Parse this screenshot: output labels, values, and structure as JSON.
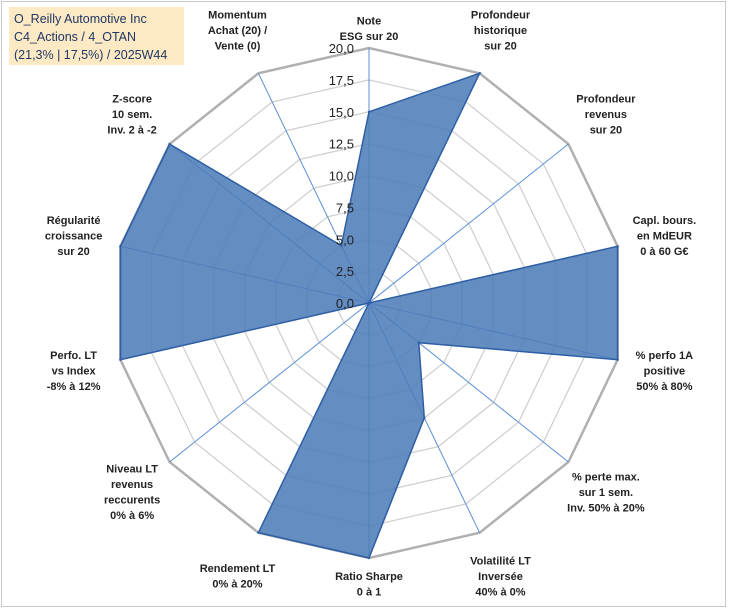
{
  "title": {
    "line1": "O_Reilly Automotive Inc",
    "line2": "C4_Actions / 4_OTAN",
    "line3": "(21,3% | 17,5%) / 2025W44"
  },
  "colors": {
    "fill": "#4f7db8",
    "stroke": "#2e5fa5",
    "grid": "#c0c0c0",
    "spoke": "#5b8fd6",
    "title_bg": "#fde9c4",
    "title_text": "#1f3864"
  },
  "chart_data": {
    "type": "radar",
    "rmax": 20,
    "ticks": [
      "0,0",
      "2,5",
      "5,0",
      "7,5",
      "10,0",
      "12,5",
      "15,0",
      "17,5",
      "20,0"
    ],
    "tick_values": [
      0,
      2.5,
      5,
      7.5,
      10,
      12.5,
      15,
      17.5,
      20
    ],
    "grid_levels": [
      2.5,
      5,
      7.5,
      10,
      12.5,
      15,
      17.5,
      20
    ],
    "axes": [
      {
        "lines": [
          "Note",
          "ESG sur 20"
        ],
        "value": 15
      },
      {
        "lines": [
          "Profondeur",
          "historique",
          "sur 20"
        ],
        "value": 20
      },
      {
        "lines": [
          "Profondeur",
          "revenus",
          "sur 20"
        ],
        "value": 0
      },
      {
        "lines": [
          "Capl. bours.",
          "en MdEUR",
          "0 à 60 G€"
        ],
        "value": 20
      },
      {
        "lines": [
          "% perfo 1A",
          "positive",
          "50% à 80%"
        ],
        "value": 20
      },
      {
        "lines": [
          "% perte max.",
          "sur 1 sem.",
          "Inv. 50% à 20%"
        ],
        "value": 5
      },
      {
        "lines": [
          "Volatilité LT",
          "Inversée",
          "40% à 0%"
        ],
        "value": 10
      },
      {
        "lines": [
          "Ratio Sharpe",
          "0 à 1"
        ],
        "value": 20
      },
      {
        "lines": [
          "Rendement LT",
          "0% à 20%"
        ],
        "value": 20
      },
      {
        "lines": [
          "Niveau LT",
          "revenus",
          "reccurents",
          "0% à 6%"
        ],
        "value": 0
      },
      {
        "lines": [
          "Perfo. LT",
          "vs Index",
          "-8% à 12%"
        ],
        "value": 20
      },
      {
        "lines": [
          "Régularité",
          "croissance",
          "sur 20"
        ],
        "value": 20
      },
      {
        "lines": [
          "Z-score",
          "10 sem.",
          "Inv. 2 à -2"
        ],
        "value": 20
      },
      {
        "lines": [
          "Momentum",
          "Achat (20) /",
          "Vente (0)"
        ],
        "value": 5
      }
    ]
  }
}
